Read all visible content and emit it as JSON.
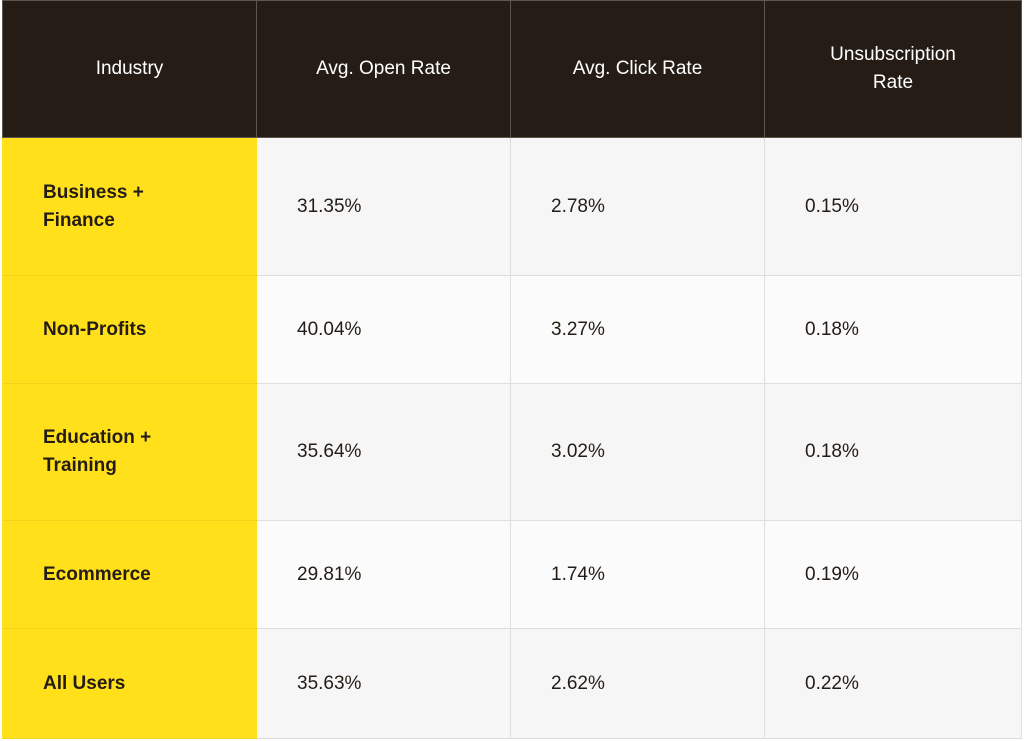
{
  "table": {
    "headers": [
      "Industry",
      "Avg. Open Rate",
      "Avg. Click Rate",
      "Unsubscription Rate"
    ],
    "rows": [
      {
        "industry": "Business + Finance",
        "open_rate": "31.35%",
        "click_rate": "2.78%",
        "unsub_rate": "0.15%"
      },
      {
        "industry": "Non-Profits",
        "open_rate": "40.04%",
        "click_rate": "3.27%",
        "unsub_rate": "0.18%"
      },
      {
        "industry": "Education + Training",
        "open_rate": "35.64%",
        "click_rate": "3.02%",
        "unsub_rate": "0.18%"
      },
      {
        "industry": "Ecommerce",
        "open_rate": "29.81%",
        "click_rate": "1.74%",
        "unsub_rate": "0.19%"
      },
      {
        "industry": "All Users",
        "open_rate": "35.63%",
        "click_rate": "2.62%",
        "unsub_rate": "0.22%"
      }
    ]
  },
  "colors": {
    "header_bg": "#241c15",
    "header_text": "#ffffff",
    "industry_bg": "#ffe01b",
    "text": "#241c15"
  }
}
